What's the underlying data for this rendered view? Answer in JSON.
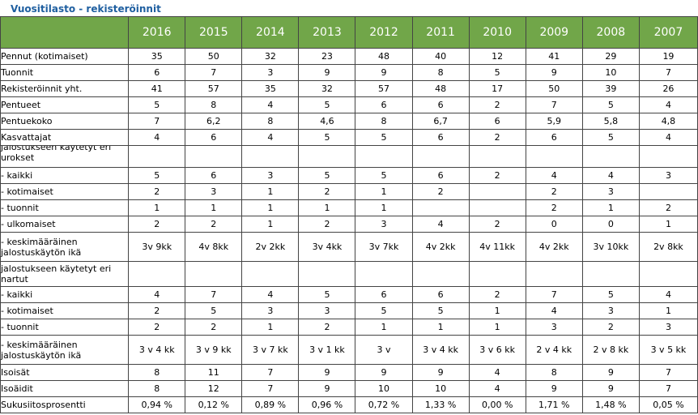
{
  "title": "Vuositilasto - rekisteröinnit",
  "colors": {
    "header_bg": "#71a649",
    "title_color": "#1f5fa0",
    "border": "#444444"
  },
  "years": [
    "2016",
    "2015",
    "2014",
    "2013",
    "2012",
    "2011",
    "2010",
    "2009",
    "2008",
    "2007"
  ],
  "rows": [
    {
      "label": "Pennut (kotimaiset)",
      "values": [
        "35",
        "50",
        "32",
        "23",
        "48",
        "40",
        "12",
        "41",
        "29",
        "19"
      ]
    },
    {
      "label": "Tuonnit",
      "values": [
        "6",
        "7",
        "3",
        "9",
        "9",
        "8",
        "5",
        "9",
        "10",
        "7"
      ]
    },
    {
      "label": "Rekisteröinnit yht.",
      "values": [
        "41",
        "57",
        "35",
        "32",
        "57",
        "48",
        "17",
        "50",
        "39",
        "26"
      ]
    },
    {
      "label": "Pentueet",
      "values": [
        "5",
        "8",
        "4",
        "5",
        "6",
        "6",
        "2",
        "7",
        "5",
        "4"
      ]
    },
    {
      "label": "Pentuekoko",
      "values": [
        "7",
        "6,2",
        "8",
        "4,6",
        "8",
        "6,7",
        "6",
        "5,9",
        "5,8",
        "4,8"
      ]
    },
    {
      "label": "Kasvattajat",
      "values": [
        "4",
        "6",
        "4",
        "5",
        "5",
        "6",
        "2",
        "6",
        "5",
        "4"
      ]
    },
    {
      "label": "jalostukseen käytetyt eri urokset",
      "values": [
        "",
        "",
        "",
        "",
        "",
        "",
        "",
        "",
        "",
        ""
      ]
    },
    {
      "label": "- kaikki",
      "values": [
        "5",
        "6",
        "3",
        "5",
        "5",
        "6",
        "2",
        "4",
        "4",
        "3"
      ]
    },
    {
      "label": "- kotimaiset",
      "values": [
        "2",
        "3",
        "1",
        "2",
        "1",
        "2",
        "",
        "2",
        "3",
        ""
      ]
    },
    {
      "label": "- tuonnit",
      "values": [
        "1",
        "1",
        "1",
        "1",
        "1",
        "",
        "",
        "2",
        "1",
        "2"
      ]
    },
    {
      "label": "- ulkomaiset",
      "values": [
        "2",
        "2",
        "1",
        "2",
        "3",
        "4",
        "2",
        "0",
        "0",
        "1"
      ]
    },
    {
      "label": "- keskimääräinen jalostuskäytön ikä",
      "values": [
        "3v 9kk",
        "4v 8kk",
        "2v 2kk",
        "3v 4kk",
        "3v 7kk",
        "4v 2kk",
        "4v 11kk",
        "4v 2kk",
        "3v 10kk",
        "2v 8kk"
      ]
    },
    {
      "label": "jalostukseen käytetyt eri nartut",
      "values": [
        "",
        "",
        "",
        "",
        "",
        "",
        "",
        "",
        "",
        ""
      ]
    },
    {
      "label": "- kaikki",
      "values": [
        "4",
        "7",
        "4",
        "5",
        "6",
        "6",
        "2",
        "7",
        "5",
        "4"
      ]
    },
    {
      "label": "- kotimaiset",
      "values": [
        "2",
        "5",
        "3",
        "3",
        "5",
        "5",
        "1",
        "4",
        "3",
        "1"
      ]
    },
    {
      "label": "- tuonnit",
      "values": [
        "2",
        "2",
        "1",
        "2",
        "1",
        "1",
        "1",
        "3",
        "2",
        "3"
      ]
    },
    {
      "label": "- keskimääräinen jalostuskäytön ikä",
      "values": [
        "3 v 4 kk",
        "3 v 9 kk",
        "3 v 7 kk",
        "3 v 1 kk",
        "3 v",
        "3 v 4 kk",
        "3 v 6 kk",
        "2 v 4 kk",
        "2 v 8 kk",
        "3 v 5 kk"
      ]
    },
    {
      "label": "Isoisät",
      "values": [
        "8",
        "11",
        "7",
        "9",
        "9",
        "9",
        "4",
        "8",
        "9",
        "7"
      ]
    },
    {
      "label": "Isoäidit",
      "values": [
        "8",
        "12",
        "7",
        "9",
        "10",
        "10",
        "4",
        "9",
        "9",
        "7"
      ]
    },
    {
      "label": "Sukusiitosprosentti",
      "values": [
        "0,94 %",
        "0,12 %",
        "0,89 %",
        "0,96 %",
        "0,72 %",
        "1,33 %",
        "0,00 %",
        "1,71 %",
        "1,48 %",
        "0,05 %"
      ]
    }
  ]
}
